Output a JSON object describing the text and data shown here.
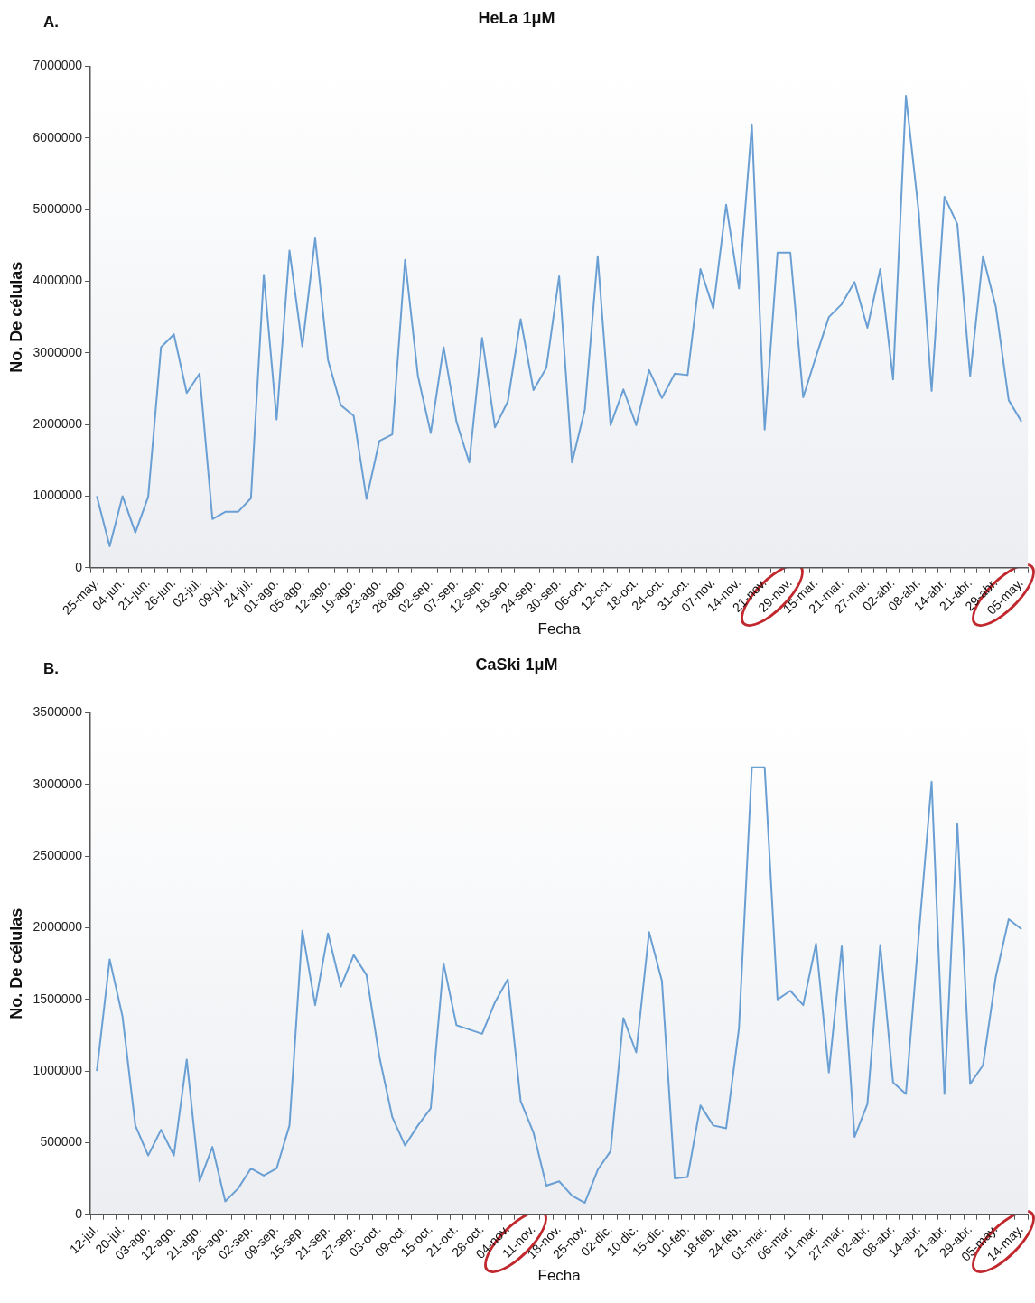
{
  "chart_data": [
    {
      "type": "line",
      "title": "HeLa 1μM",
      "annotations": [
        "A."
      ],
      "xlabel": "Fecha",
      "ylabel": "No. De células",
      "categories": [
        "25-may.",
        null,
        "04-jun.",
        null,
        "21-jun.",
        null,
        "26-jun.",
        null,
        "02-jul.",
        null,
        "09-jul.",
        null,
        "24-jul.",
        null,
        "01-ago.",
        null,
        "05-ago.",
        null,
        "12-ago.",
        null,
        "19-ago.",
        null,
        "23-ago.",
        null,
        "28-ago.",
        null,
        "02-sep.",
        null,
        "07-sep.",
        null,
        "12-sep.",
        null,
        "18-sep.",
        null,
        "24-sep.",
        null,
        "30-sep.",
        null,
        "06-oct.",
        null,
        "12-oct.",
        null,
        "18-oct.",
        null,
        "24-oct.",
        null,
        "31-oct.",
        null,
        "07-nov.",
        null,
        "14-nov.",
        null,
        "21-nov.",
        null,
        "29-nov.",
        null,
        "15-mar.",
        null,
        "21-mar.",
        null,
        "27-mar.",
        null,
        "02-abr.",
        null,
        "08-abr.",
        null,
        "14-abr.",
        null,
        "21-abr.",
        null,
        "29-abr.",
        null,
        "05-may."
      ],
      "series": [
        {
          "color": "#6a9fd4",
          "values": [
            1000000,
            300000,
            1000000,
            490000,
            990000,
            3080000,
            3260000,
            2440000,
            2710000,
            680000,
            780000,
            780000,
            970000,
            4090000,
            2070000,
            4430000,
            3090000,
            4600000,
            2900000,
            2270000,
            2120000,
            960000,
            1770000,
            1860000,
            4300000,
            2680000,
            1880000,
            3080000,
            2040000,
            1470000,
            3210000,
            1960000,
            2320000,
            3470000,
            2480000,
            2790000,
            4070000,
            1470000,
            2210000,
            4350000,
            1990000,
            2490000,
            1990000,
            2760000,
            2370000,
            2710000,
            2690000,
            4170000,
            3620000,
            5070000,
            3900000,
            6190000,
            1930000,
            4400000,
            4400000,
            2380000,
            2950000,
            3500000,
            3680000,
            3990000,
            3350000,
            4170000,
            2630000,
            6590000,
            4960000,
            2470000,
            5180000,
            4800000,
            2680000,
            4350000,
            3640000,
            2340000,
            2040000
          ]
        }
      ],
      "ylim": [
        0,
        7000000
      ],
      "yticks": [
        0,
        1000000,
        2000000,
        3000000,
        4000000,
        5000000,
        6000000,
        7000000
      ]
    },
    {
      "type": "line",
      "title": "CaSki 1μM",
      "annotations": [
        "B."
      ],
      "xlabel": "Fecha",
      "ylabel": "No. De células",
      "categories": [
        "12-jul.",
        null,
        "20-jul.",
        null,
        "03-ago.",
        null,
        "12-ago.",
        null,
        "21-ago.",
        null,
        "26-ago.",
        null,
        "02-sep.",
        null,
        "09-sep.",
        null,
        "15-sep.",
        null,
        "21-sep.",
        null,
        "27-sep.",
        null,
        "03-oct.",
        null,
        "09-oct.",
        null,
        "15-oct.",
        null,
        "21-oct.",
        null,
        "28-oct.",
        null,
        "04-nov.",
        null,
        "11-nov.",
        null,
        "18-nov.",
        null,
        "25-nov.",
        null,
        "02-dic.",
        null,
        "10-dic.",
        null,
        "15-dic.",
        null,
        "10-feb.",
        null,
        "18-feb.",
        null,
        "24-feb.",
        null,
        "01-mar.",
        null,
        "06-mar.",
        null,
        "11-mar.",
        null,
        "27-mar.",
        null,
        "02-abr.",
        null,
        "08-abr.",
        null,
        "14-abr.",
        null,
        "21-abr.",
        null,
        "29-abr.",
        null,
        "05-may.",
        null,
        "14-may."
      ],
      "series": [
        {
          "color": "#6a9fd4",
          "values": [
            1000000,
            1780000,
            1380000,
            620000,
            410000,
            590000,
            410000,
            1080000,
            230000,
            470000,
            90000,
            180000,
            320000,
            270000,
            320000,
            620000,
            1980000,
            1460000,
            1960000,
            1590000,
            1810000,
            1670000,
            1100000,
            680000,
            480000,
            620000,
            740000,
            1750000,
            1320000,
            1290000,
            1260000,
            1480000,
            1640000,
            790000,
            570000,
            200000,
            230000,
            130000,
            80000,
            310000,
            440000,
            1370000,
            1130000,
            1970000,
            1630000,
            250000,
            260000,
            760000,
            620000,
            600000,
            1300000,
            3120000,
            3120000,
            1500000,
            1560000,
            1460000,
            1890000,
            990000,
            1870000,
            540000,
            770000,
            1880000,
            920000,
            840000,
            1950000,
            3020000,
            840000,
            2730000,
            910000,
            1040000,
            1660000,
            2060000,
            1990000
          ]
        }
      ],
      "ylim": [
        0,
        3500000
      ],
      "yticks": [
        0,
        500000,
        1000000,
        1500000,
        2000000,
        2500000,
        3000000,
        3500000
      ]
    }
  ]
}
